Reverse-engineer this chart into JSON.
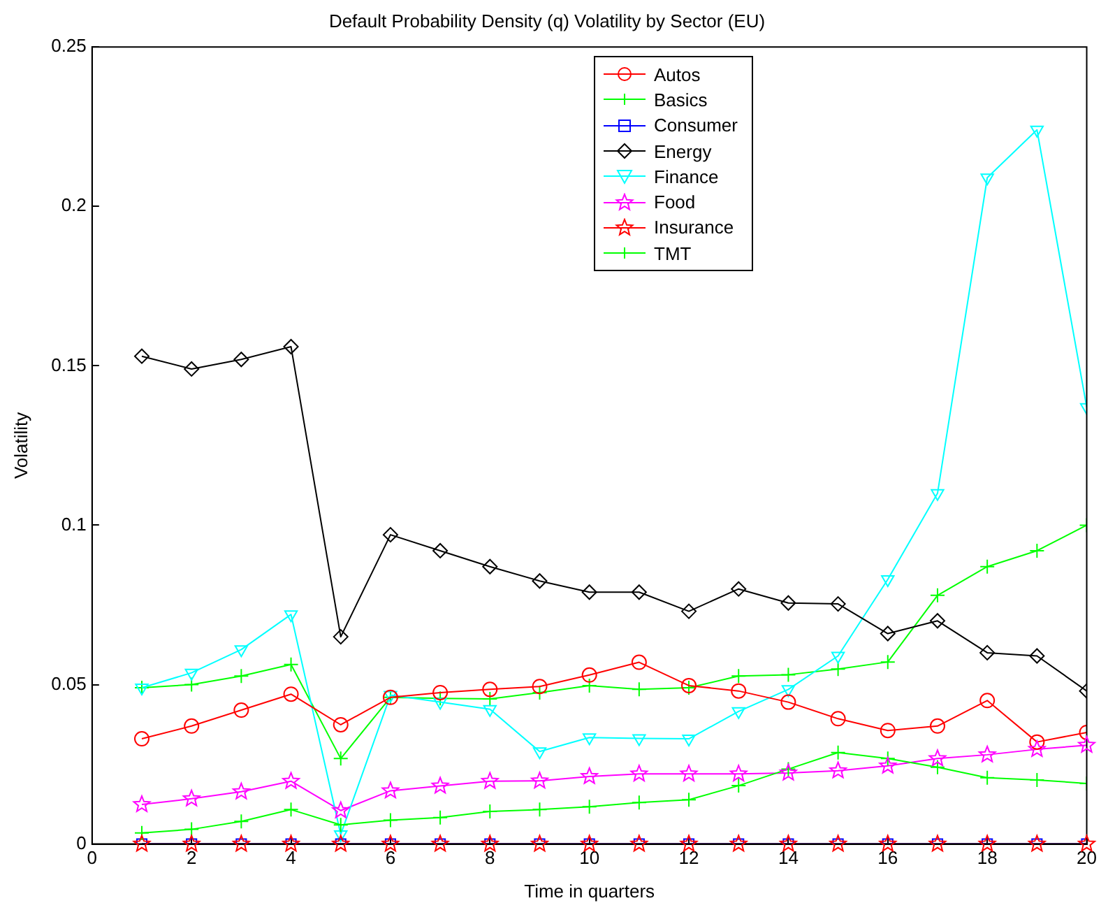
{
  "chart_data": {
    "type": "line",
    "title": "Default Probability Density (q) Volatility by Sector (EU)",
    "xlabel": "Time in quarters",
    "ylabel": "Volatility",
    "x": [
      1,
      2,
      3,
      4,
      5,
      6,
      7,
      8,
      9,
      10,
      11,
      12,
      13,
      14,
      15,
      16,
      17,
      18,
      19,
      20
    ],
    "xlim": [
      0,
      20
    ],
    "xticks": [
      0,
      2,
      4,
      6,
      8,
      10,
      12,
      14,
      16,
      18,
      20
    ],
    "ylim": [
      0,
      0.25
    ],
    "yticks": [
      0,
      0.05,
      0.1,
      0.15,
      0.2,
      0.25
    ],
    "legend": "top",
    "grid": false,
    "series": [
      {
        "name": "Autos",
        "color": "#ff0000",
        "marker": "circle",
        "values": [
          0.033,
          0.037,
          0.042,
          0.047,
          0.0374,
          0.046,
          0.0475,
          0.0485,
          0.0494,
          0.053,
          0.057,
          0.0497,
          0.048,
          0.0445,
          0.0393,
          0.0356,
          0.037,
          0.045,
          0.032,
          0.035
        ]
      },
      {
        "name": "Basics",
        "color": "#00ff00",
        "marker": "cross",
        "values": [
          0.0035,
          0.0046,
          0.0071,
          0.0108,
          0.006,
          0.0075,
          0.0083,
          0.0102,
          0.0108,
          0.0117,
          0.013,
          0.0139,
          0.0183,
          0.0235,
          0.0287,
          0.0268,
          0.0241,
          0.0208,
          0.0201,
          0.019
        ]
      },
      {
        "name": "Consumer",
        "color": "#0000ff",
        "marker": "square",
        "values": [
          0,
          0,
          0,
          0,
          0,
          0,
          0,
          0,
          0,
          0,
          0,
          0,
          0,
          0,
          0,
          0,
          0,
          0,
          0,
          0
        ]
      },
      {
        "name": "Energy",
        "color": "#000000",
        "marker": "diamond",
        "values": [
          0.153,
          0.149,
          0.152,
          0.156,
          0.065,
          0.097,
          0.092,
          0.087,
          0.0825,
          0.079,
          0.079,
          0.073,
          0.08,
          0.0756,
          0.0753,
          0.066,
          0.07,
          0.06,
          0.059,
          0.048
        ]
      },
      {
        "name": "Finance",
        "color": "#00ffff",
        "marker": "triangle",
        "values": [
          0.049,
          0.0537,
          0.061,
          0.072,
          0.003,
          0.0467,
          0.0445,
          0.0423,
          0.029,
          0.0334,
          0.0331,
          0.033,
          0.0416,
          0.0485,
          0.059,
          0.083,
          0.11,
          0.209,
          0.224,
          0.137
        ]
      },
      {
        "name": "Food",
        "color": "#ff00ff",
        "marker": "star",
        "values": [
          0.0124,
          0.0142,
          0.0164,
          0.0197,
          0.0105,
          0.0167,
          0.0182,
          0.0197,
          0.0198,
          0.0212,
          0.022,
          0.022,
          0.022,
          0.0223,
          0.023,
          0.0245,
          0.0268,
          0.028,
          0.0297,
          0.031
        ]
      },
      {
        "name": "Insurance",
        "color": "#ff0000",
        "marker": "star",
        "values": [
          0,
          0,
          0,
          0,
          0,
          0,
          0,
          0,
          0,
          0,
          0,
          0,
          0,
          0,
          0,
          0,
          0,
          0,
          0,
          0
        ]
      },
      {
        "name": "TMT",
        "color": "#00ff00",
        "marker": "cross",
        "values": [
          0.049,
          0.05,
          0.0527,
          0.0563,
          0.0268,
          0.046,
          0.0457,
          0.0455,
          0.0475,
          0.0497,
          0.0485,
          0.049,
          0.0527,
          0.0531,
          0.0549,
          0.0571,
          0.078,
          0.087,
          0.092,
          0.1
        ]
      }
    ]
  }
}
